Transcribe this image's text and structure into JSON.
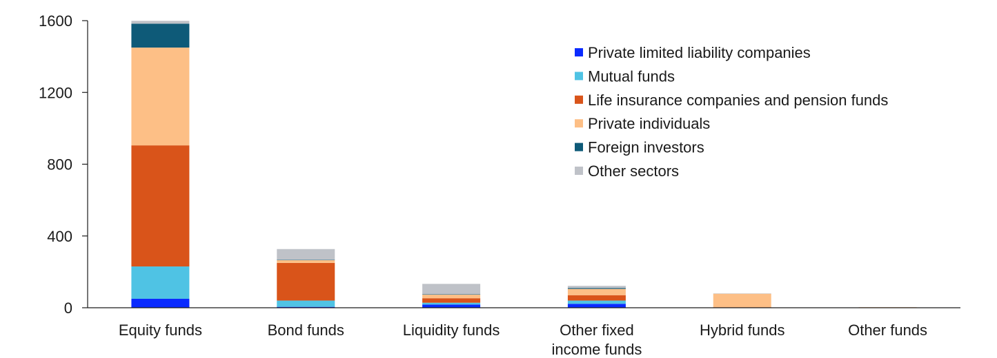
{
  "chart_data": {
    "type": "bar",
    "stacked": true,
    "title": "",
    "xlabel": "",
    "ylabel": "",
    "ylim": [
      0,
      1600
    ],
    "yticks": [
      0,
      400,
      800,
      1200,
      1600
    ],
    "grid": false,
    "legend_position": "top-right",
    "categories": [
      [
        "Equity funds"
      ],
      [
        "Bond funds"
      ],
      [
        "Liquidity funds"
      ],
      [
        "Other fixed",
        "income funds"
      ],
      [
        "Hybrid funds"
      ],
      [
        "Other funds"
      ]
    ],
    "series": [
      {
        "name": "Private limited liability companies",
        "color": "#0a2bff",
        "values": [
          50,
          5,
          18,
          22,
          1,
          0
        ]
      },
      {
        "name": "Mutual funds",
        "color": "#4fc3e4",
        "values": [
          180,
          35,
          10,
          18,
          0,
          0
        ]
      },
      {
        "name": "Life insurance companies and pension funds",
        "color": "#d9541a",
        "values": [
          675,
          210,
          25,
          30,
          2,
          2
        ]
      },
      {
        "name": "Private individuals",
        "color": "#fdbf86",
        "values": [
          545,
          15,
          20,
          35,
          75,
          1
        ]
      },
      {
        "name": "Foreign investors",
        "color": "#0e5a78",
        "values": [
          133,
          2,
          2,
          5,
          0,
          0
        ]
      },
      {
        "name": "Other sectors",
        "color": "#bfc2c8",
        "values": [
          16,
          60,
          58,
          12,
          2,
          0
        ]
      }
    ]
  }
}
